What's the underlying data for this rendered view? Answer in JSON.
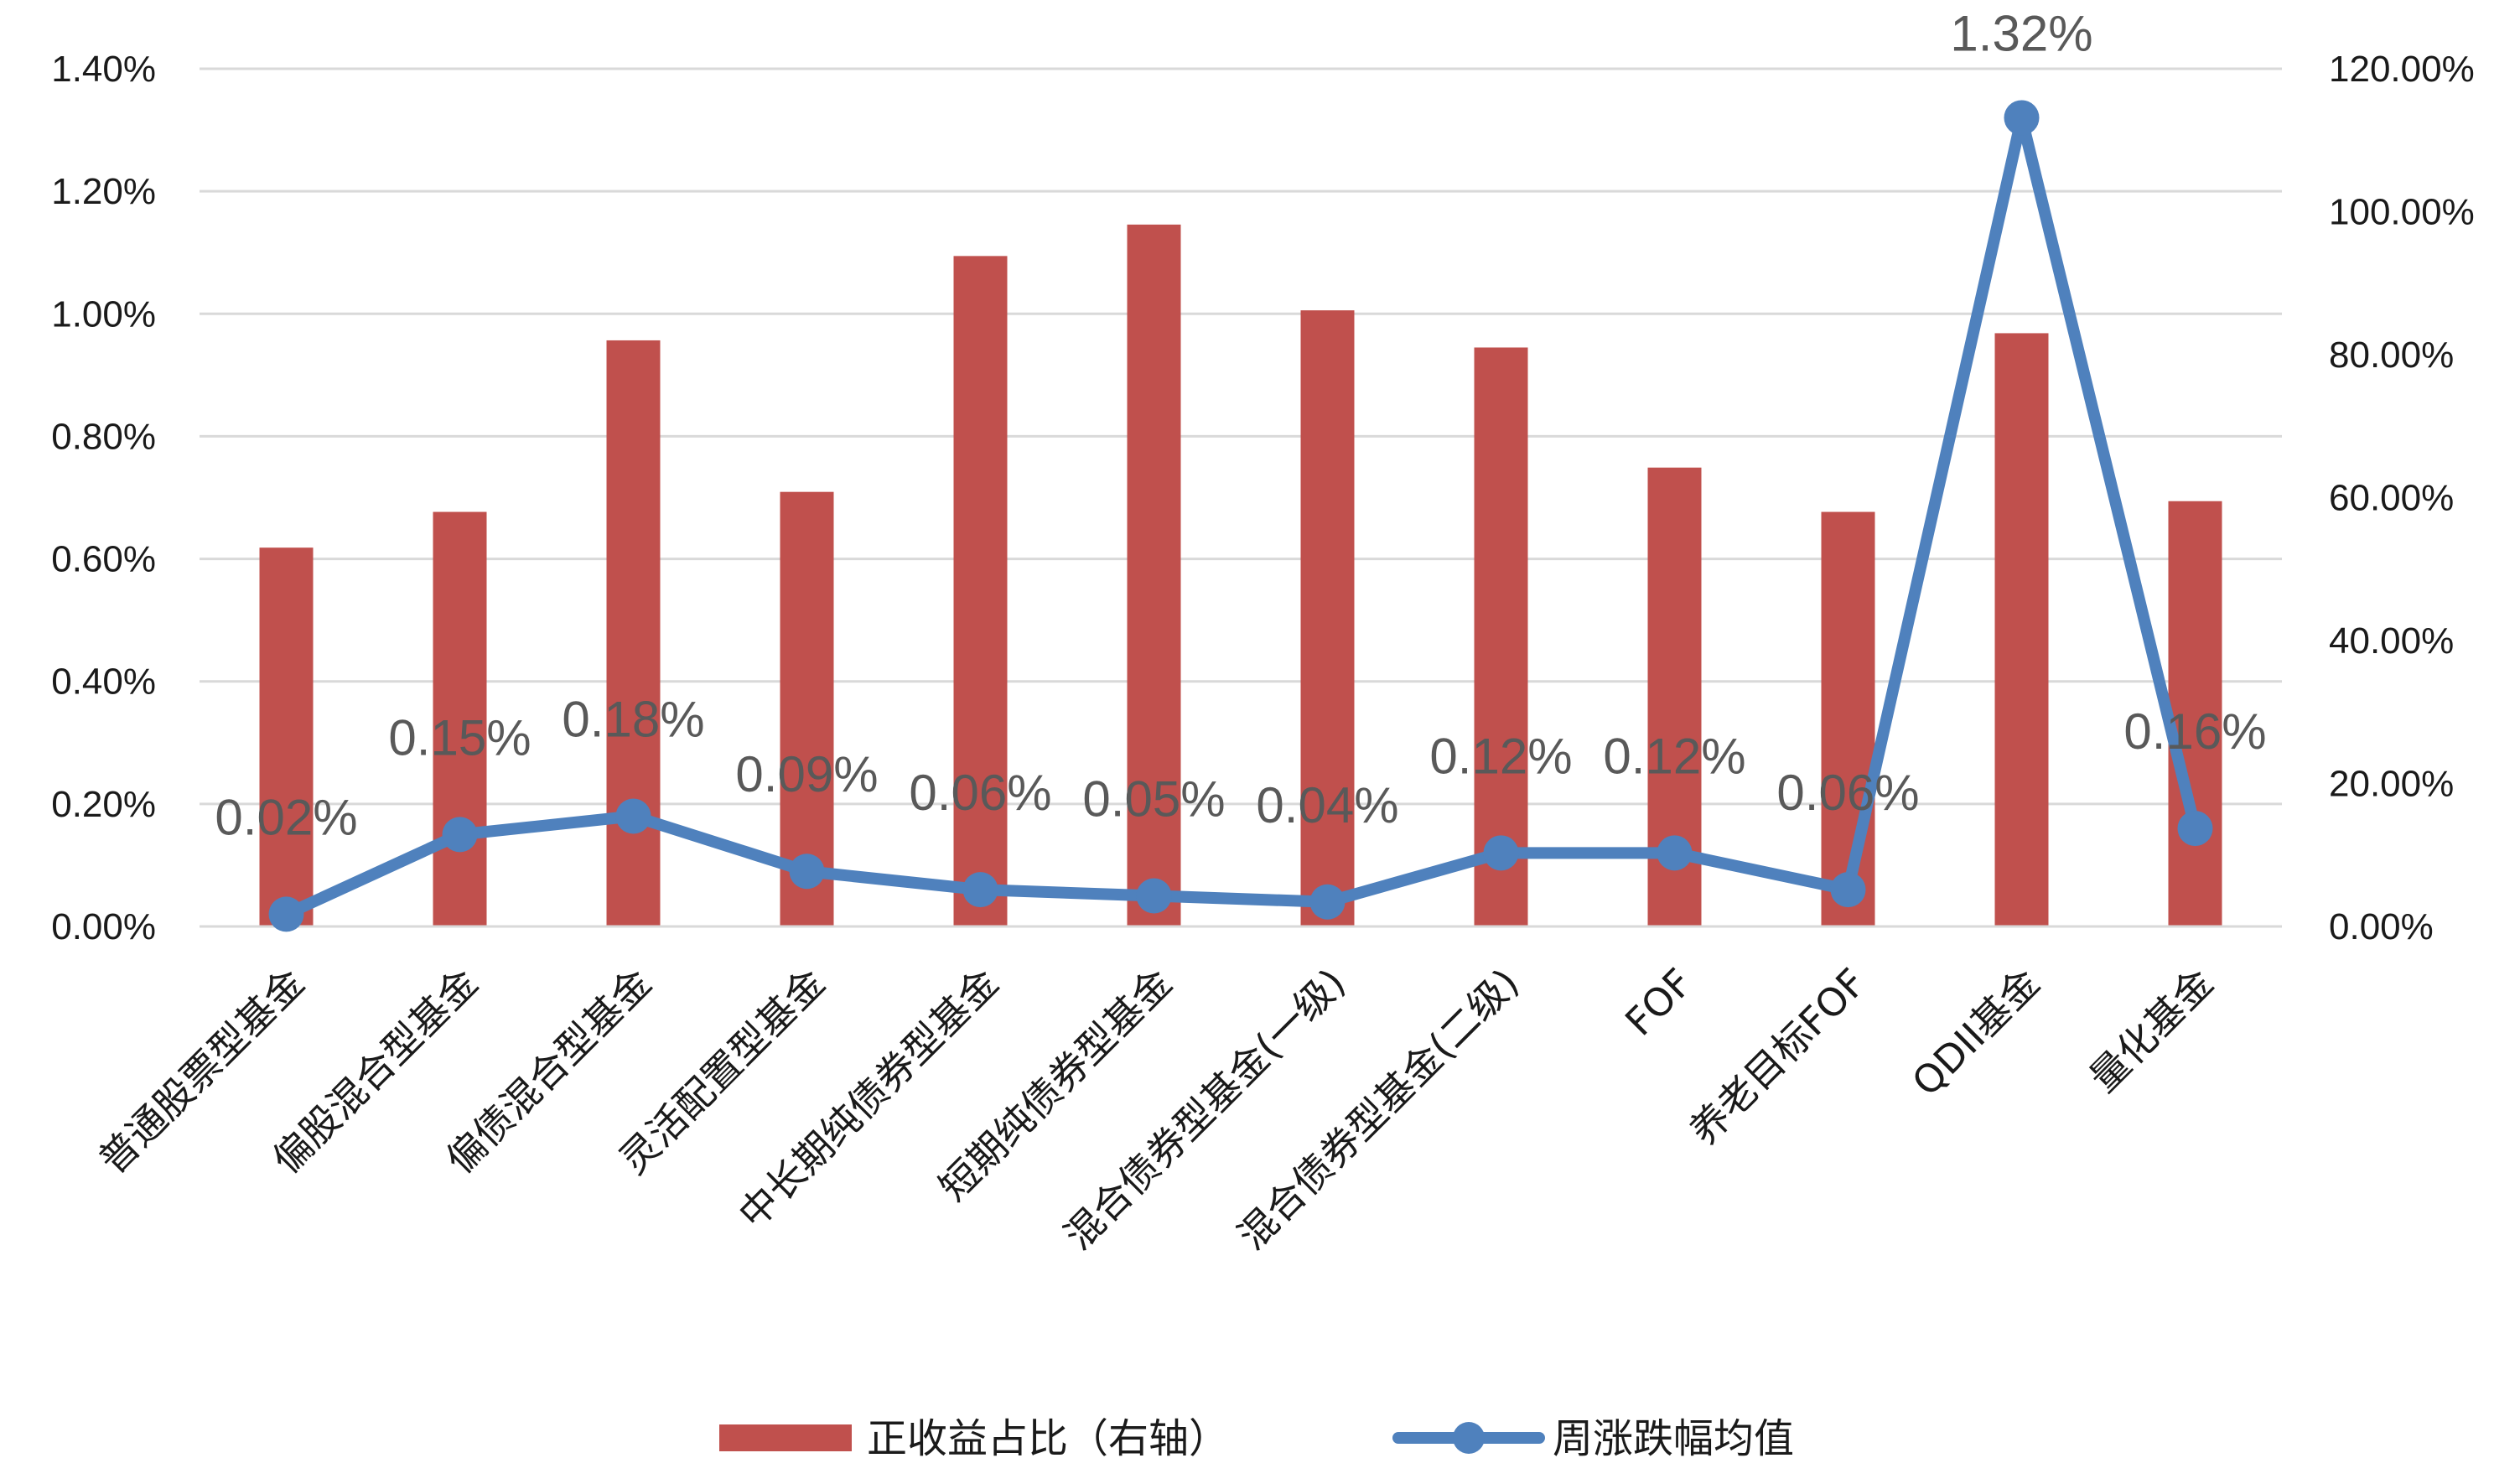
{
  "chart_data": {
    "type": "bar",
    "title": "",
    "xlabel": "",
    "ylabel": "",
    "categories": [
      "普通股票型基金",
      "偏股混合型基金",
      "偏债混合型基金",
      "灵活配置型基金",
      "中长期纯债券型基金",
      "短期纯债券型基金",
      "混合债券型基金(一级)",
      "混合债券型基金(二级)",
      "FOF",
      "养老目标FOF",
      "QDII基金",
      "量化基金"
    ],
    "series": [
      {
        "name": "正收益占比（右轴）",
        "type": "bar",
        "axis": "right",
        "color": "#c0504d",
        "values": [
          53.0,
          58.0,
          82.0,
          60.8,
          93.8,
          98.2,
          86.2,
          81.0,
          64.2,
          58.0,
          83.0,
          59.5
        ]
      },
      {
        "name": "周涨跌幅均值",
        "type": "line",
        "axis": "left",
        "color": "#4f81bd",
        "values": [
          0.02,
          0.15,
          0.18,
          0.09,
          0.06,
          0.05,
          0.04,
          0.12,
          0.12,
          0.06,
          1.32,
          0.16
        ],
        "data_labels": [
          "0.02%",
          "0.15%",
          "0.18%",
          "0.09%",
          "0.06%",
          "0.05%",
          "0.04%",
          "0.12%",
          "0.12%",
          "0.06%",
          "1.32%",
          "0.16%"
        ]
      }
    ],
    "left_axis": {
      "ylim": [
        0,
        1.4
      ],
      "ticks": [
        0,
        0.2,
        0.4,
        0.6,
        0.8,
        1.0,
        1.2,
        1.4
      ],
      "tick_labels": [
        "0.00%",
        "0.20%",
        "0.40%",
        "0.60%",
        "0.80%",
        "1.00%",
        "1.20%",
        "1.40%"
      ]
    },
    "right_axis": {
      "ylim": [
        0,
        120
      ],
      "ticks": [
        0,
        20,
        40,
        60,
        80,
        100,
        120
      ],
      "tick_labels": [
        "0.00%",
        "20.00%",
        "40.00%",
        "60.00%",
        "80.00%",
        "100.00%",
        "120.00%"
      ]
    },
    "grid": true,
    "legend": "bottom-center"
  }
}
